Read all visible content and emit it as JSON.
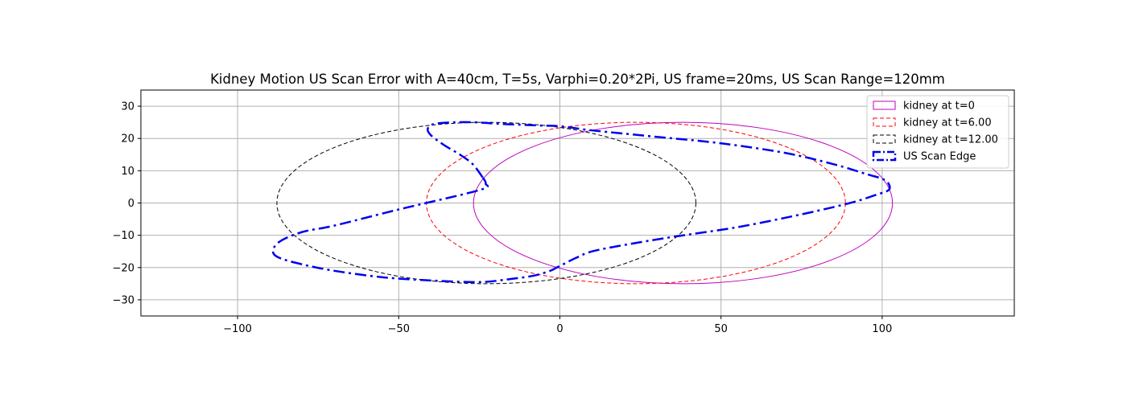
{
  "chart_data": {
    "type": "line",
    "title": "Kidney Motion US Scan Error with A=40cm, T=5s, Varphi=0.20*2Pi, US frame=20ms, US Scan Range=120mm",
    "xlabel": "",
    "ylabel": "",
    "xlim": [
      -130,
      141
    ],
    "ylim": [
      -35,
      35
    ],
    "xticks": [
      -100,
      -50,
      0,
      50,
      100
    ],
    "xtick_labels": [
      "−100",
      "−50",
      "0",
      "50",
      "100"
    ],
    "yticks": [
      -30,
      -20,
      -10,
      0,
      10,
      20,
      30
    ],
    "ytick_labels": [
      "−30",
      "−20",
      "−10",
      "0",
      "10",
      "20",
      "30"
    ],
    "grid": true,
    "legend_position": "top-right",
    "series": [
      {
        "name": "kidney at t=0",
        "kind": "ellipse",
        "center": [
          38.2,
          0
        ],
        "semi_axes": [
          65,
          25
        ],
        "color": "#bf00bf",
        "line_style": "solid",
        "line_width": 1
      },
      {
        "name": "kidney at t=6.00",
        "kind": "ellipse",
        "center": [
          23.6,
          0
        ],
        "semi_axes": [
          65,
          25
        ],
        "color": "#ff0000",
        "line_style": "dashed",
        "line_width": 1
      },
      {
        "name": "kidney at t=12.00",
        "kind": "ellipse",
        "center": [
          -22.8,
          0
        ],
        "semi_axes": [
          65,
          25
        ],
        "color": "#000000",
        "line_style": "dashed",
        "line_width": 1
      },
      {
        "name": "US Scan Edge",
        "kind": "curve",
        "color": "#0000ee",
        "line_style": "dashdot",
        "line_width": 2.5,
        "x": [
          -24,
          -27,
          -31,
          -36,
          -40,
          -41,
          -39,
          -33,
          -26,
          -18,
          -6,
          0,
          10,
          30,
          50,
          70,
          85,
          95,
          100,
          102,
          102,
          98,
          90,
          75,
          55,
          35,
          20,
          10,
          5,
          1,
          -1,
          -3,
          -8,
          -15,
          -25,
          -40,
          -55,
          -70,
          -80,
          -87,
          -89,
          -87,
          -80,
          -70,
          -50,
          -25,
          -23,
          -24
        ],
        "y": [
          8,
          12,
          15,
          18,
          21,
          23,
          24.5,
          25,
          25,
          24.5,
          24,
          23.8,
          22.5,
          20.5,
          18.5,
          15.5,
          12,
          9,
          7.5,
          6,
          4,
          2.5,
          0,
          -3.5,
          -7.5,
          -10.5,
          -13,
          -15,
          -17,
          -19,
          -20,
          -21,
          -22.5,
          -23.5,
          -24.5,
          -24,
          -23,
          -21,
          -19,
          -17,
          -15,
          -12,
          -9,
          -7,
          -2,
          4,
          6,
          8
        ]
      }
    ]
  }
}
